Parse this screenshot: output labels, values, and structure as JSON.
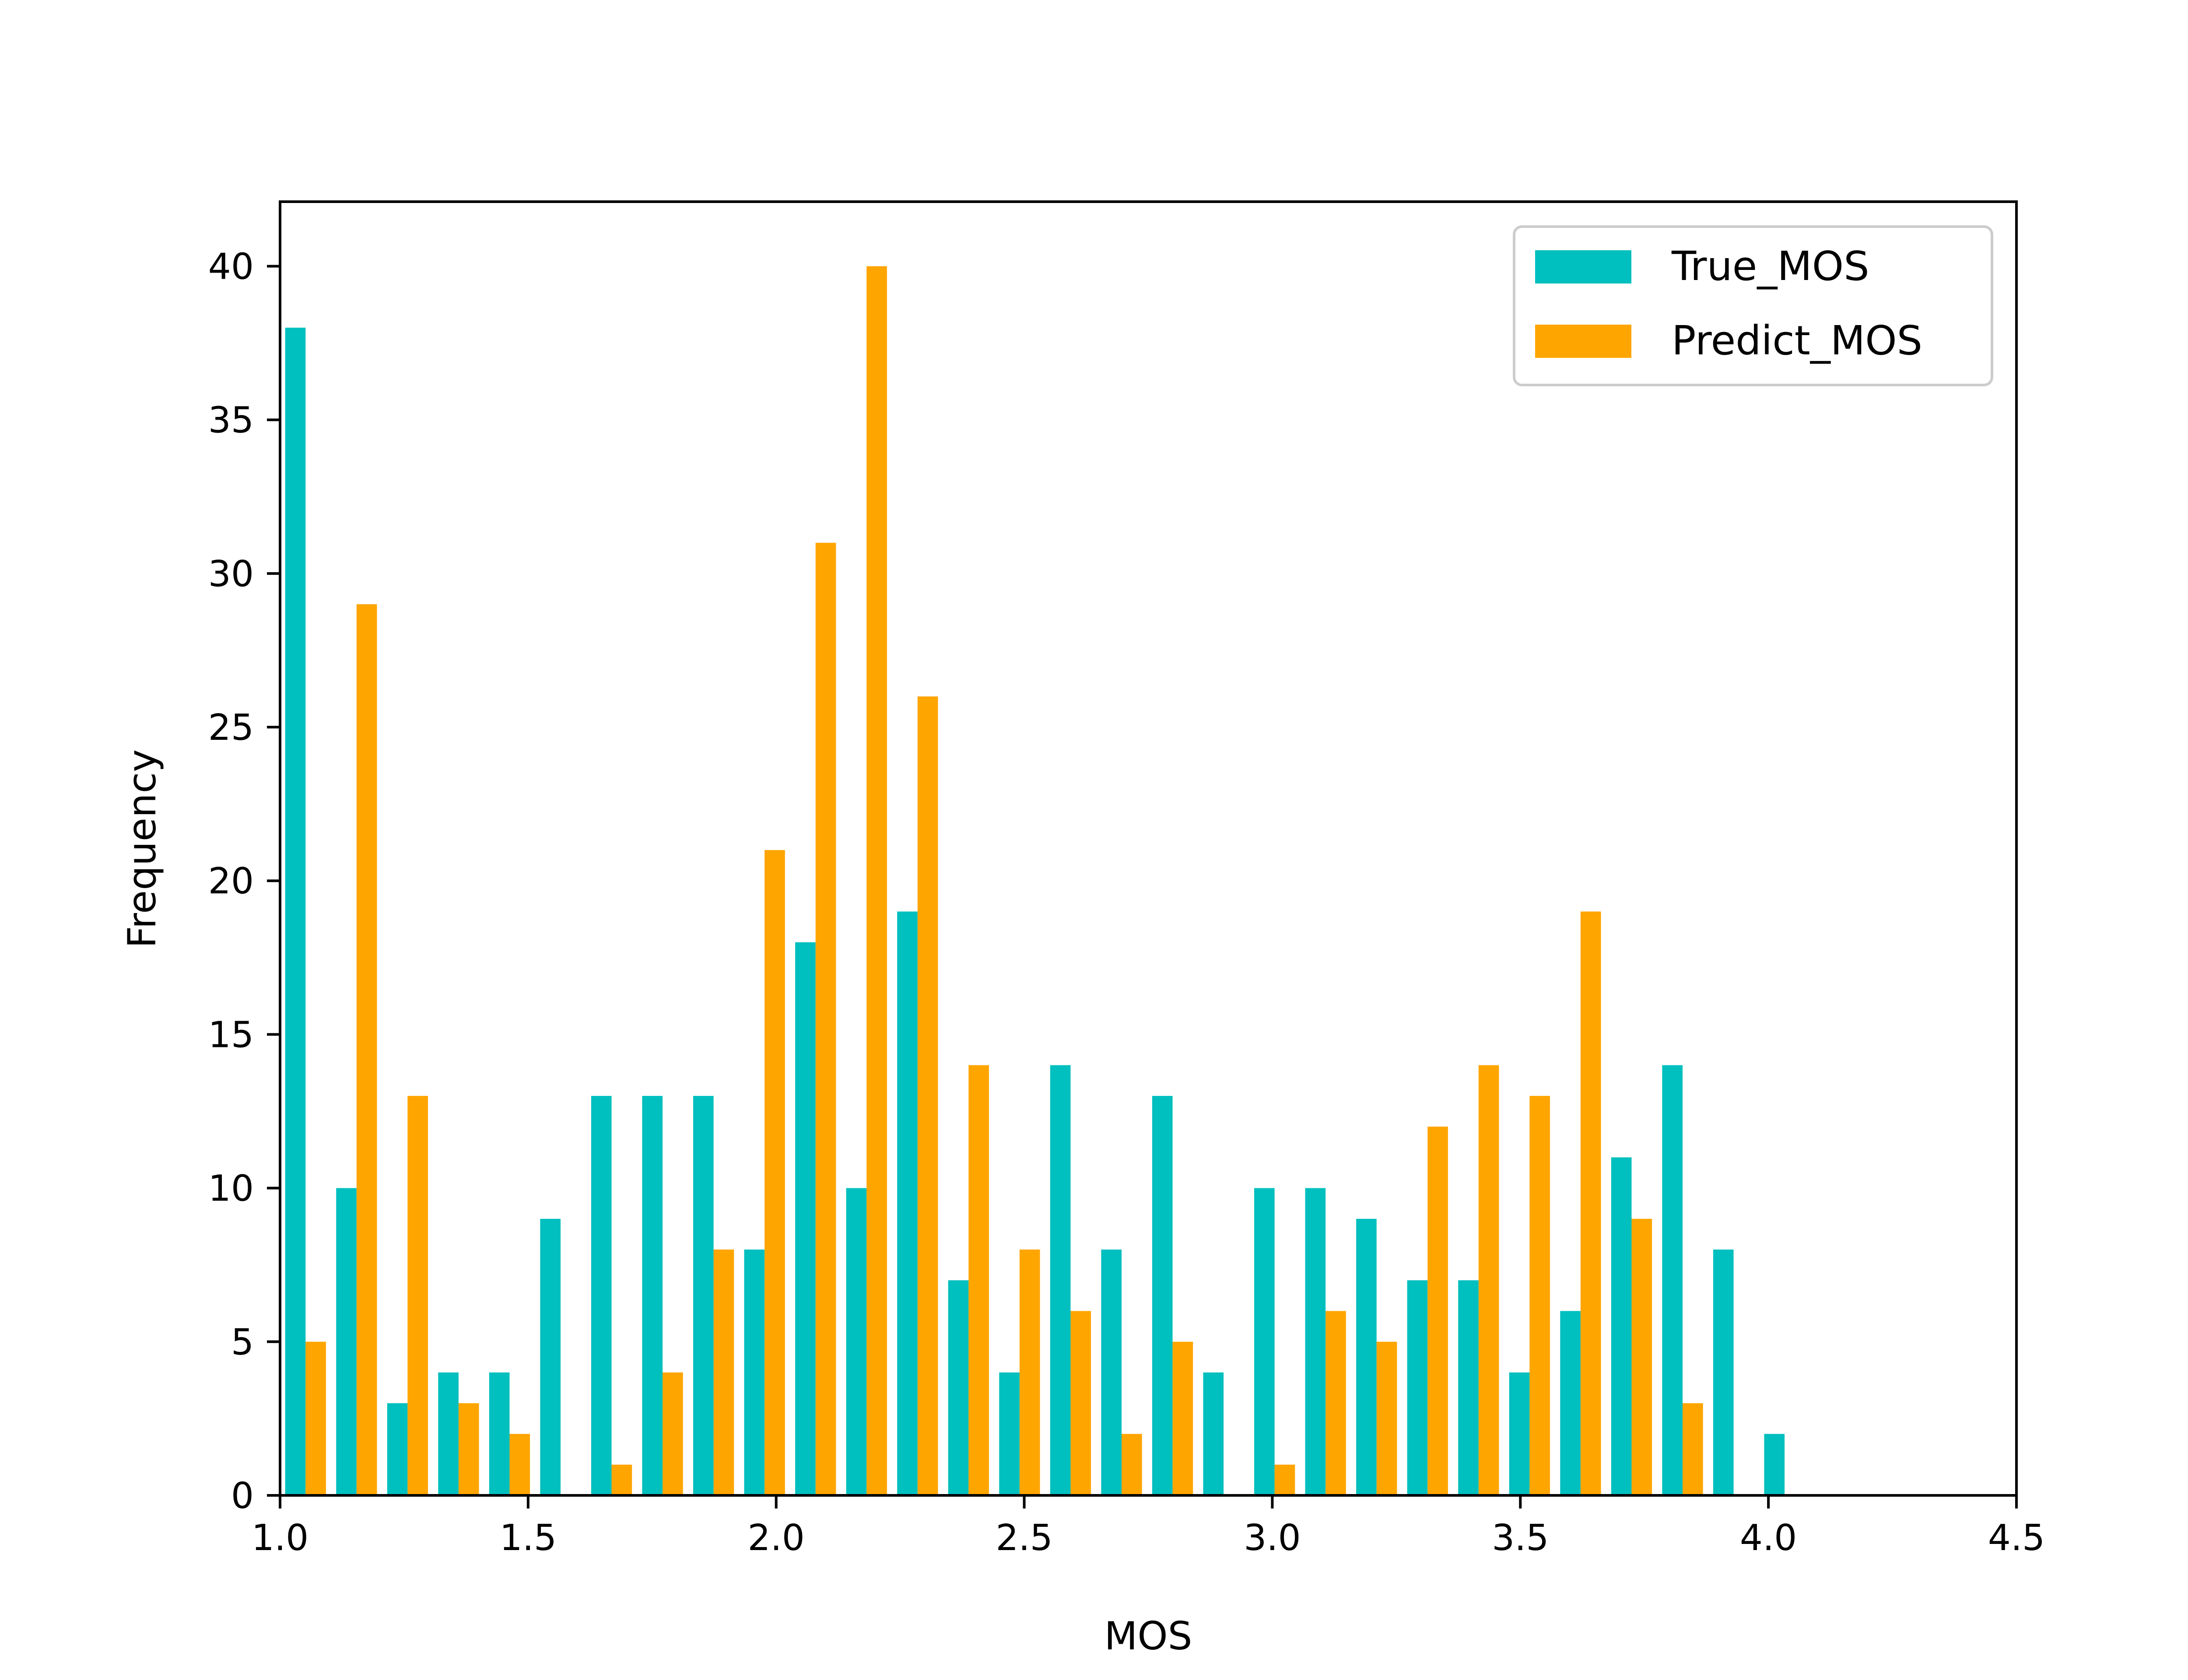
{
  "chart_data": {
    "type": "bar",
    "title": "",
    "xlabel": "MOS",
    "ylabel": "Frequency",
    "xlim": [
      1.0,
      4.5
    ],
    "ylim": [
      0,
      42.1
    ],
    "xticks": [
      "1.0",
      "1.5",
      "2.0",
      "2.5",
      "3.0",
      "3.5",
      "4.0",
      "4.5"
    ],
    "yticks": [
      "0",
      "5",
      "10",
      "15",
      "20",
      "25",
      "30",
      "35",
      "40"
    ],
    "grid": false,
    "legend_position": "top-right",
    "bin_width": 0.1028,
    "bins_start": [
      1.0,
      1.1028,
      1.2056,
      1.3084,
      1.4112,
      1.514,
      1.6168,
      1.7196,
      1.8224,
      1.9252,
      2.028,
      2.1308,
      2.2336,
      2.3364,
      2.4392,
      2.542,
      2.6448,
      2.7476,
      2.8504,
      2.9532,
      3.056,
      3.1588,
      3.2616,
      3.3644,
      3.4672,
      3.57,
      3.6728,
      3.7756,
      3.8784,
      3.9812
    ],
    "series": [
      {
        "name": "True_MOS",
        "color": "#00bfbf",
        "values": [
          38,
          10,
          3,
          4,
          4,
          9,
          13,
          13,
          13,
          8,
          18,
          10,
          19,
          7,
          4,
          14,
          8,
          13,
          4,
          10,
          10,
          9,
          7,
          7,
          4,
          6,
          11,
          14,
          8,
          2
        ]
      },
      {
        "name": "Predict_MOS",
        "color": "#ffa500",
        "values": [
          5,
          29,
          13,
          3,
          2,
          0,
          1,
          4,
          8,
          21,
          31,
          40,
          26,
          14,
          8,
          6,
          2,
          5,
          0,
          1,
          6,
          5,
          12,
          14,
          13,
          19,
          9,
          3,
          0,
          0
        ]
      }
    ]
  }
}
